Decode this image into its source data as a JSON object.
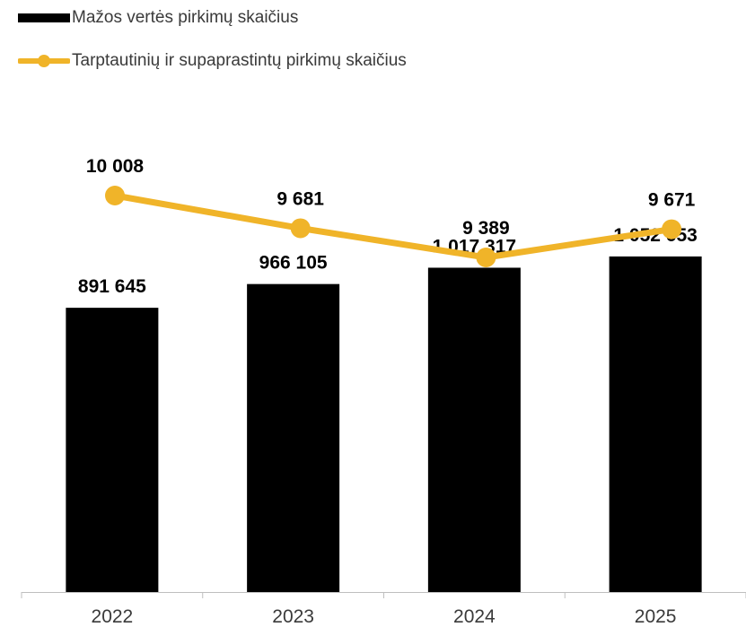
{
  "chart_data": {
    "type": "bar+line",
    "categories": [
      "2022",
      "2023",
      "2024",
      "2025"
    ],
    "series": [
      {
        "name": "Mažos vertės pirkimų skaičius",
        "kind": "bar",
        "color": "#000000",
        "values": [
          891645,
          966105,
          1017317,
          1052653
        ],
        "labels": [
          "891 645",
          "966 105",
          "1 017 317",
          "1 052 653"
        ],
        "ylim": [
          0,
          1300000
        ]
      },
      {
        "name": "Tarptautinių ir supaprastintų pirkimų skaičius",
        "kind": "line",
        "color": "#F0B429",
        "values": [
          10008,
          9681,
          9389,
          9671
        ],
        "labels": [
          "10 008",
          "9 681",
          "9 389",
          "9 671"
        ],
        "ylim": [
          8000,
          10700
        ]
      }
    ],
    "legend_position": "top-left",
    "grid": false
  }
}
